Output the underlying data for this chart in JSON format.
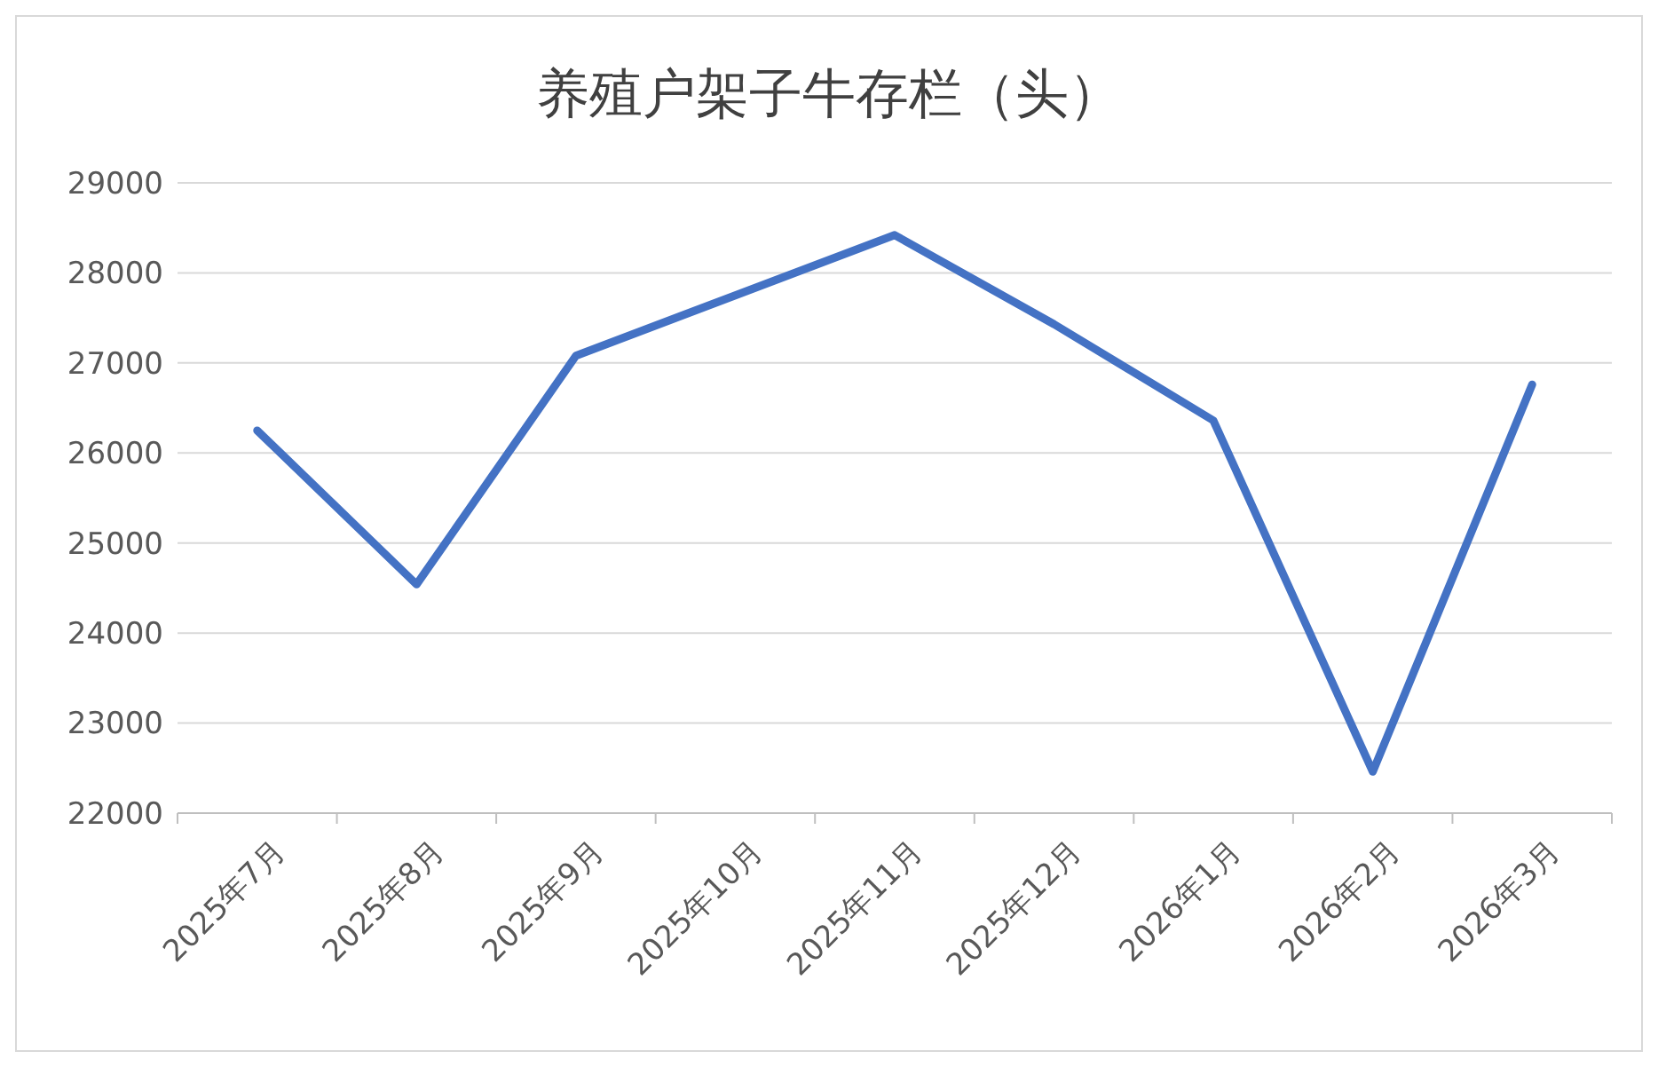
{
  "chart_data": {
    "type": "line",
    "title": "养殖户架子牛存栏（头）",
    "categories": [
      "2025年7月",
      "2025年8月",
      "2025年9月",
      "2025年10月",
      "2025年11月",
      "2025年12月",
      "2026年1月",
      "2026年2月",
      "2026年3月"
    ],
    "series": [
      {
        "color": "#4472c4",
        "values": [
          26250,
          24540,
          27080,
          27750,
          28420,
          27430,
          26360,
          22460,
          26760
        ]
      }
    ],
    "ylim": [
      22000,
      29000
    ],
    "yticks": [
      22000,
      23000,
      24000,
      25000,
      26000,
      27000,
      28000,
      29000
    ],
    "grid": "y",
    "marker": "none",
    "line_style": "solid"
  }
}
